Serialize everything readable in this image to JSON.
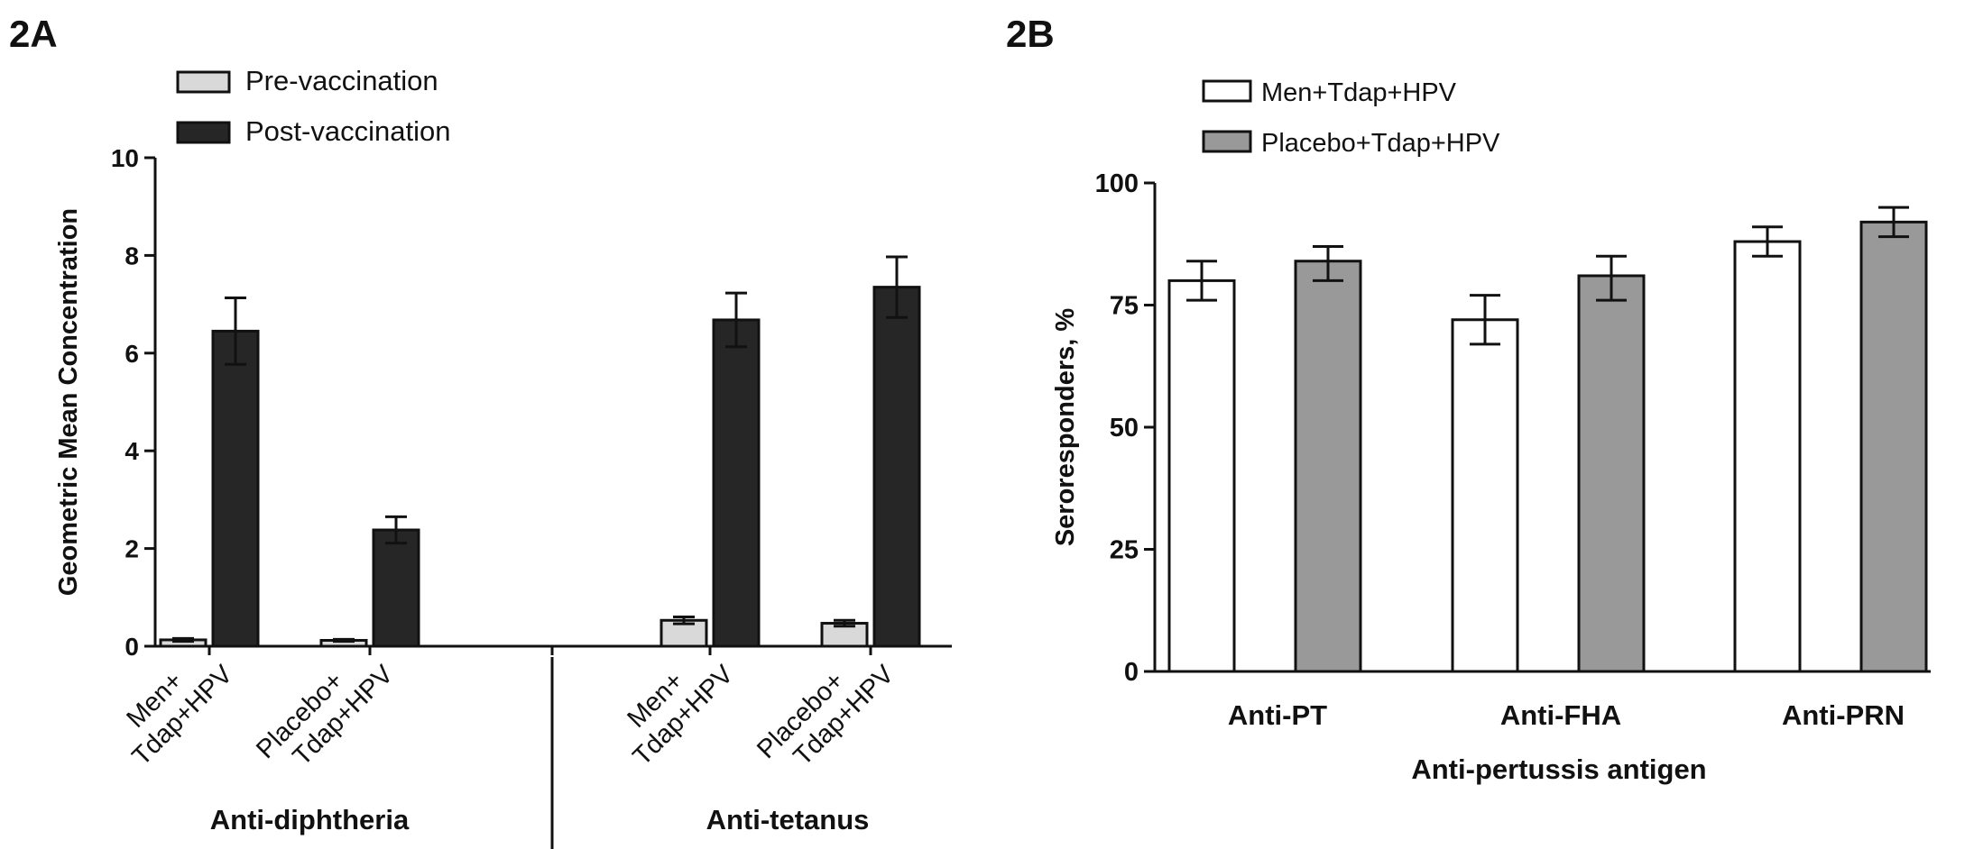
{
  "chart_data": [
    {
      "panel_label": "2A",
      "type": "bar",
      "ylabel": "Geometric Mean Concentration",
      "ylim": [
        0,
        10
      ],
      "yticks": [
        0,
        2,
        4,
        6,
        8,
        10
      ],
      "legend": "top-left",
      "grid": false,
      "series": [
        {
          "name": "Pre-vaccination",
          "color": "#d9d9d9"
        },
        {
          "name": "Post-vaccination",
          "color": "#262626"
        }
      ],
      "groups": [
        {
          "label": "Anti-diphtheria",
          "categories": [
            {
              "line1": "Men+",
              "line2": "Tdap+HPV",
              "values": [
                0.13,
                6.45
              ],
              "errors": [
                0.03,
                0.68
              ]
            },
            {
              "line1": "Placebo+",
              "line2": "Tdap+HPV",
              "values": [
                0.12,
                2.38
              ],
              "errors": [
                0.02,
                0.27
              ]
            }
          ]
        },
        {
          "label": "Anti-tetanus",
          "categories": [
            {
              "line1": "Men+",
              "line2": "Tdap+HPV",
              "values": [
                0.53,
                6.68
              ],
              "errors": [
                0.07,
                0.55
              ]
            },
            {
              "line1": "Placebo+",
              "line2": "Tdap+HPV",
              "values": [
                0.47,
                7.35
              ],
              "errors": [
                0.06,
                0.62
              ]
            }
          ]
        }
      ]
    },
    {
      "panel_label": "2B",
      "type": "bar",
      "xlabel": "Anti-pertussis antigen",
      "ylabel": "Seroresponders, %",
      "ylim": [
        0,
        100
      ],
      "yticks": [
        0,
        25,
        50,
        75,
        100
      ],
      "legend": "top-left",
      "grid": false,
      "categories": [
        "Anti-PT",
        "Anti-FHA",
        "Anti-PRN"
      ],
      "series": [
        {
          "name": "Men+Tdap+HPV",
          "color": "#ffffff",
          "values": [
            80,
            72,
            88
          ],
          "err_low": [
            76,
            67,
            85
          ],
          "err_high": [
            84,
            77,
            91
          ]
        },
        {
          "name": "Placebo+Tdap+HPV",
          "color": "#999999",
          "values": [
            84,
            81,
            92
          ],
          "err_low": [
            80,
            76,
            89
          ],
          "err_high": [
            87,
            85,
            95
          ]
        }
      ]
    }
  ]
}
